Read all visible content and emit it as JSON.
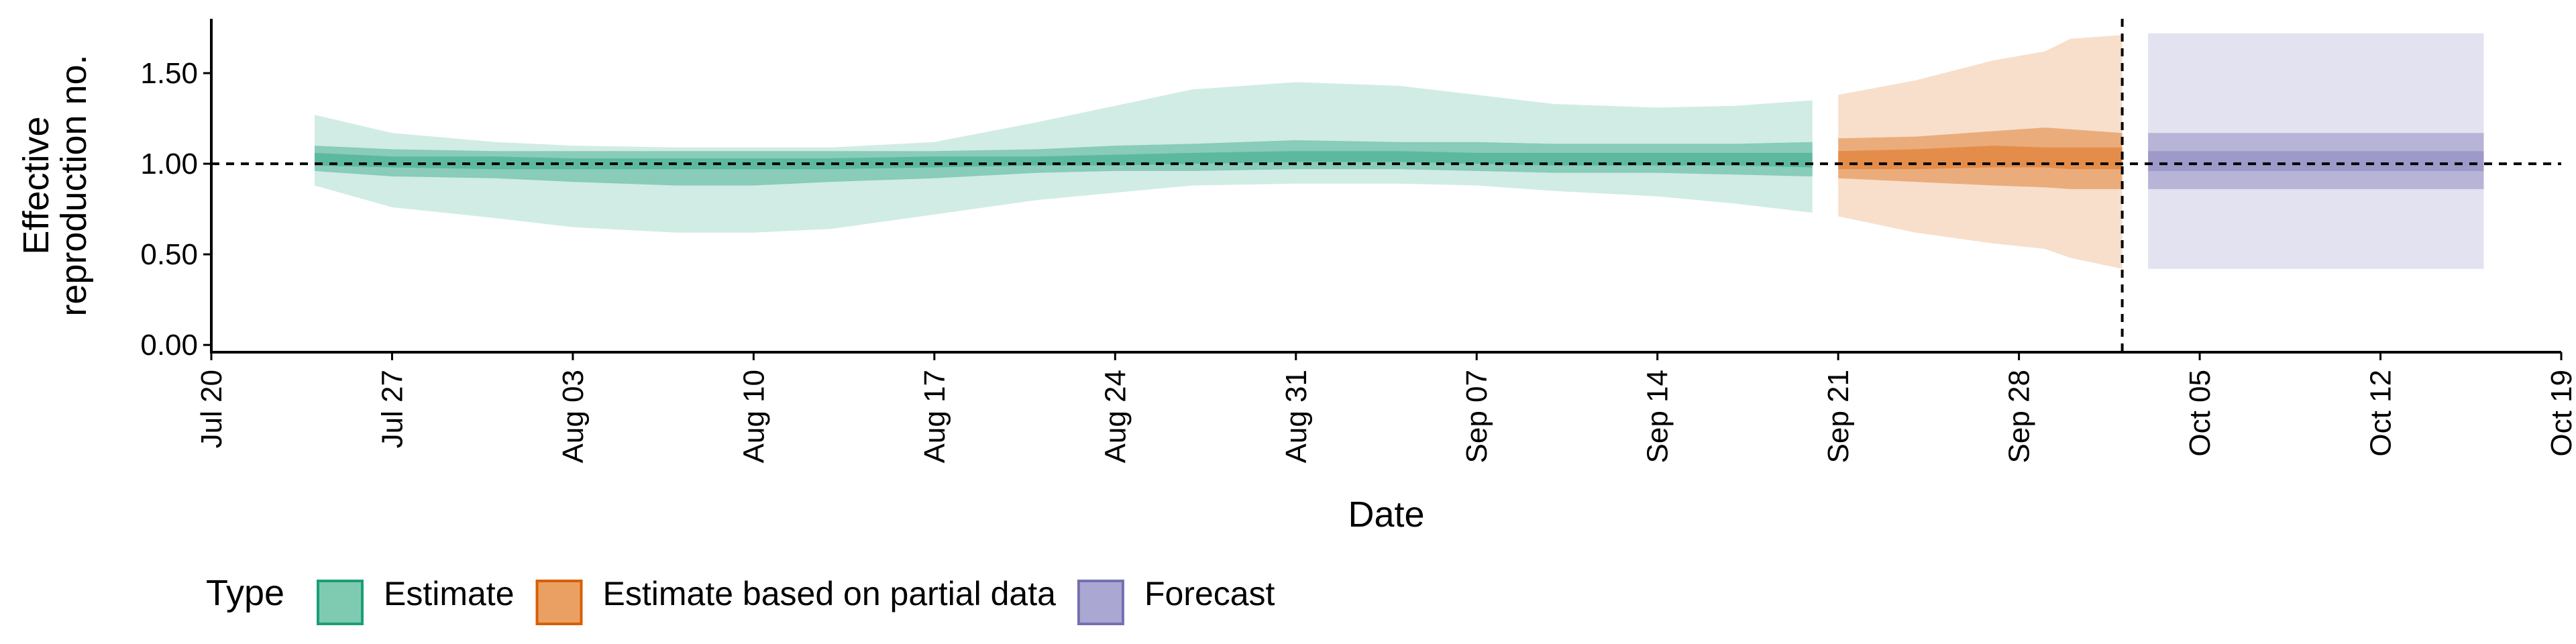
{
  "chart_data": {
    "type": "area",
    "xlabel": "Date",
    "ylabel_lines": [
      "Effective",
      "reproduction no."
    ],
    "ylim": [
      -0.04,
      1.8
    ],
    "yticks": [
      0.0,
      0.5,
      1.0,
      1.5
    ],
    "ytick_labels": [
      "0.00",
      "0.50",
      "1.00",
      "1.50"
    ],
    "xlim": [
      "2020-07-20",
      "2020-10-19"
    ],
    "xticks": [
      "2020-07-20",
      "2020-07-27",
      "2020-08-03",
      "2020-08-10",
      "2020-08-17",
      "2020-08-24",
      "2020-08-31",
      "2020-09-07",
      "2020-09-14",
      "2020-09-21",
      "2020-09-28",
      "2020-10-05",
      "2020-10-12",
      "2020-10-19"
    ],
    "xtick_labels": [
      "Jul 20",
      "Jul 27",
      "Aug 03",
      "Aug 10",
      "Aug 17",
      "Aug 24",
      "Aug 31",
      "Sep 07",
      "Sep 14",
      "Sep 21",
      "Sep 28",
      "Oct 05",
      "Oct 12",
      "Oct 19"
    ],
    "reference_line_y": 1.0,
    "vertical_line_x": "2020-10-02",
    "series": [
      {
        "name": "Estimate",
        "color": "#1b9e77",
        "points": [
          {
            "x": "2020-07-24",
            "lo90": 0.88,
            "hi90": 1.27,
            "lo50": 0.96,
            "hi50": 1.1,
            "lo20": 0.99,
            "hi20": 1.06
          },
          {
            "x": "2020-07-27",
            "lo90": 0.76,
            "hi90": 1.17,
            "lo50": 0.93,
            "hi50": 1.08,
            "lo20": 0.98,
            "hi20": 1.04
          },
          {
            "x": "2020-07-31",
            "lo90": 0.7,
            "hi90": 1.12,
            "lo50": 0.92,
            "hi50": 1.07,
            "lo20": 0.97,
            "hi20": 1.04
          },
          {
            "x": "2020-08-03",
            "lo90": 0.65,
            "hi90": 1.1,
            "lo50": 0.9,
            "hi50": 1.07,
            "lo20": 0.97,
            "hi20": 1.03
          },
          {
            "x": "2020-08-07",
            "lo90": 0.62,
            "hi90": 1.09,
            "lo50": 0.88,
            "hi50": 1.07,
            "lo20": 0.97,
            "hi20": 1.03
          },
          {
            "x": "2020-08-10",
            "lo90": 0.62,
            "hi90": 1.09,
            "lo50": 0.88,
            "hi50": 1.07,
            "lo20": 0.97,
            "hi20": 1.03
          },
          {
            "x": "2020-08-13",
            "lo90": 0.64,
            "hi90": 1.09,
            "lo50": 0.9,
            "hi50": 1.07,
            "lo20": 0.97,
            "hi20": 1.03
          },
          {
            "x": "2020-08-17",
            "lo90": 0.72,
            "hi90": 1.12,
            "lo50": 0.92,
            "hi50": 1.07,
            "lo20": 0.98,
            "hi20": 1.04
          },
          {
            "x": "2020-08-21",
            "lo90": 0.8,
            "hi90": 1.23,
            "lo50": 0.95,
            "hi50": 1.08,
            "lo20": 0.99,
            "hi20": 1.04
          },
          {
            "x": "2020-08-24",
            "lo90": 0.84,
            "hi90": 1.32,
            "lo50": 0.96,
            "hi50": 1.1,
            "lo20": 0.99,
            "hi20": 1.05
          },
          {
            "x": "2020-08-27",
            "lo90": 0.88,
            "hi90": 1.41,
            "lo50": 0.96,
            "hi50": 1.11,
            "lo20": 1.0,
            "hi20": 1.06
          },
          {
            "x": "2020-08-31",
            "lo90": 0.89,
            "hi90": 1.45,
            "lo50": 0.97,
            "hi50": 1.13,
            "lo20": 1.01,
            "hi20": 1.07
          },
          {
            "x": "2020-09-04",
            "lo90": 0.89,
            "hi90": 1.43,
            "lo50": 0.97,
            "hi50": 1.12,
            "lo20": 1.01,
            "hi20": 1.07
          },
          {
            "x": "2020-09-07",
            "lo90": 0.88,
            "hi90": 1.38,
            "lo50": 0.96,
            "hi50": 1.12,
            "lo20": 1.0,
            "hi20": 1.06
          },
          {
            "x": "2020-09-10",
            "lo90": 0.85,
            "hi90": 1.33,
            "lo50": 0.95,
            "hi50": 1.11,
            "lo20": 0.99,
            "hi20": 1.06
          },
          {
            "x": "2020-09-14",
            "lo90": 0.82,
            "hi90": 1.31,
            "lo50": 0.95,
            "hi50": 1.11,
            "lo20": 0.99,
            "hi20": 1.06
          },
          {
            "x": "2020-09-17",
            "lo90": 0.78,
            "hi90": 1.32,
            "lo50": 0.94,
            "hi50": 1.11,
            "lo20": 0.99,
            "hi20": 1.06
          },
          {
            "x": "2020-09-20",
            "lo90": 0.73,
            "hi90": 1.35,
            "lo50": 0.93,
            "hi50": 1.12,
            "lo20": 0.98,
            "hi20": 1.06
          }
        ]
      },
      {
        "name": "Estimate based on partial data",
        "color": "#d95f02",
        "points": [
          {
            "x": "2020-09-21",
            "lo90": 0.71,
            "hi90": 1.38,
            "lo50": 0.92,
            "hi50": 1.14,
            "lo20": 0.97,
            "hi20": 1.07
          },
          {
            "x": "2020-09-24",
            "lo90": 0.62,
            "hi90": 1.46,
            "lo50": 0.9,
            "hi50": 1.15,
            "lo20": 0.97,
            "hi20": 1.08
          },
          {
            "x": "2020-09-27",
            "lo90": 0.56,
            "hi90": 1.57,
            "lo50": 0.88,
            "hi50": 1.18,
            "lo20": 0.98,
            "hi20": 1.1
          },
          {
            "x": "2020-09-29",
            "lo90": 0.53,
            "hi90": 1.62,
            "lo50": 0.87,
            "hi50": 1.2,
            "lo20": 0.98,
            "hi20": 1.09
          },
          {
            "x": "2020-09-30",
            "lo90": 0.48,
            "hi90": 1.69,
            "lo50": 0.86,
            "hi50": 1.19,
            "lo20": 0.97,
            "hi20": 1.09
          },
          {
            "x": "2020-10-02",
            "lo90": 0.42,
            "hi90": 1.71,
            "lo50": 0.86,
            "hi50": 1.17,
            "lo20": 0.97,
            "hi20": 1.09
          }
        ]
      },
      {
        "name": "Forecast",
        "color": "#7570b3",
        "points": [
          {
            "x": "2020-10-03",
            "lo90": 0.42,
            "hi90": 1.72,
            "lo50": 0.86,
            "hi50": 1.17,
            "lo20": 0.96,
            "hi20": 1.07
          },
          {
            "x": "2020-10-16",
            "lo90": 0.42,
            "hi90": 1.72,
            "lo50": 0.86,
            "hi50": 1.17,
            "lo20": 0.96,
            "hi20": 1.07
          }
        ]
      }
    ],
    "legend": {
      "title": "Type",
      "position": "bottom-left",
      "entries": [
        {
          "label": "Estimate",
          "fill": "#7fcbb1",
          "stroke": "#1b9e77"
        },
        {
          "label": "Estimate based on partial data",
          "fill": "#eba063",
          "stroke": "#d95f02"
        },
        {
          "label": "Forecast",
          "fill": "#aaa8d2",
          "stroke": "#7570b3"
        }
      ]
    },
    "grid": false
  }
}
